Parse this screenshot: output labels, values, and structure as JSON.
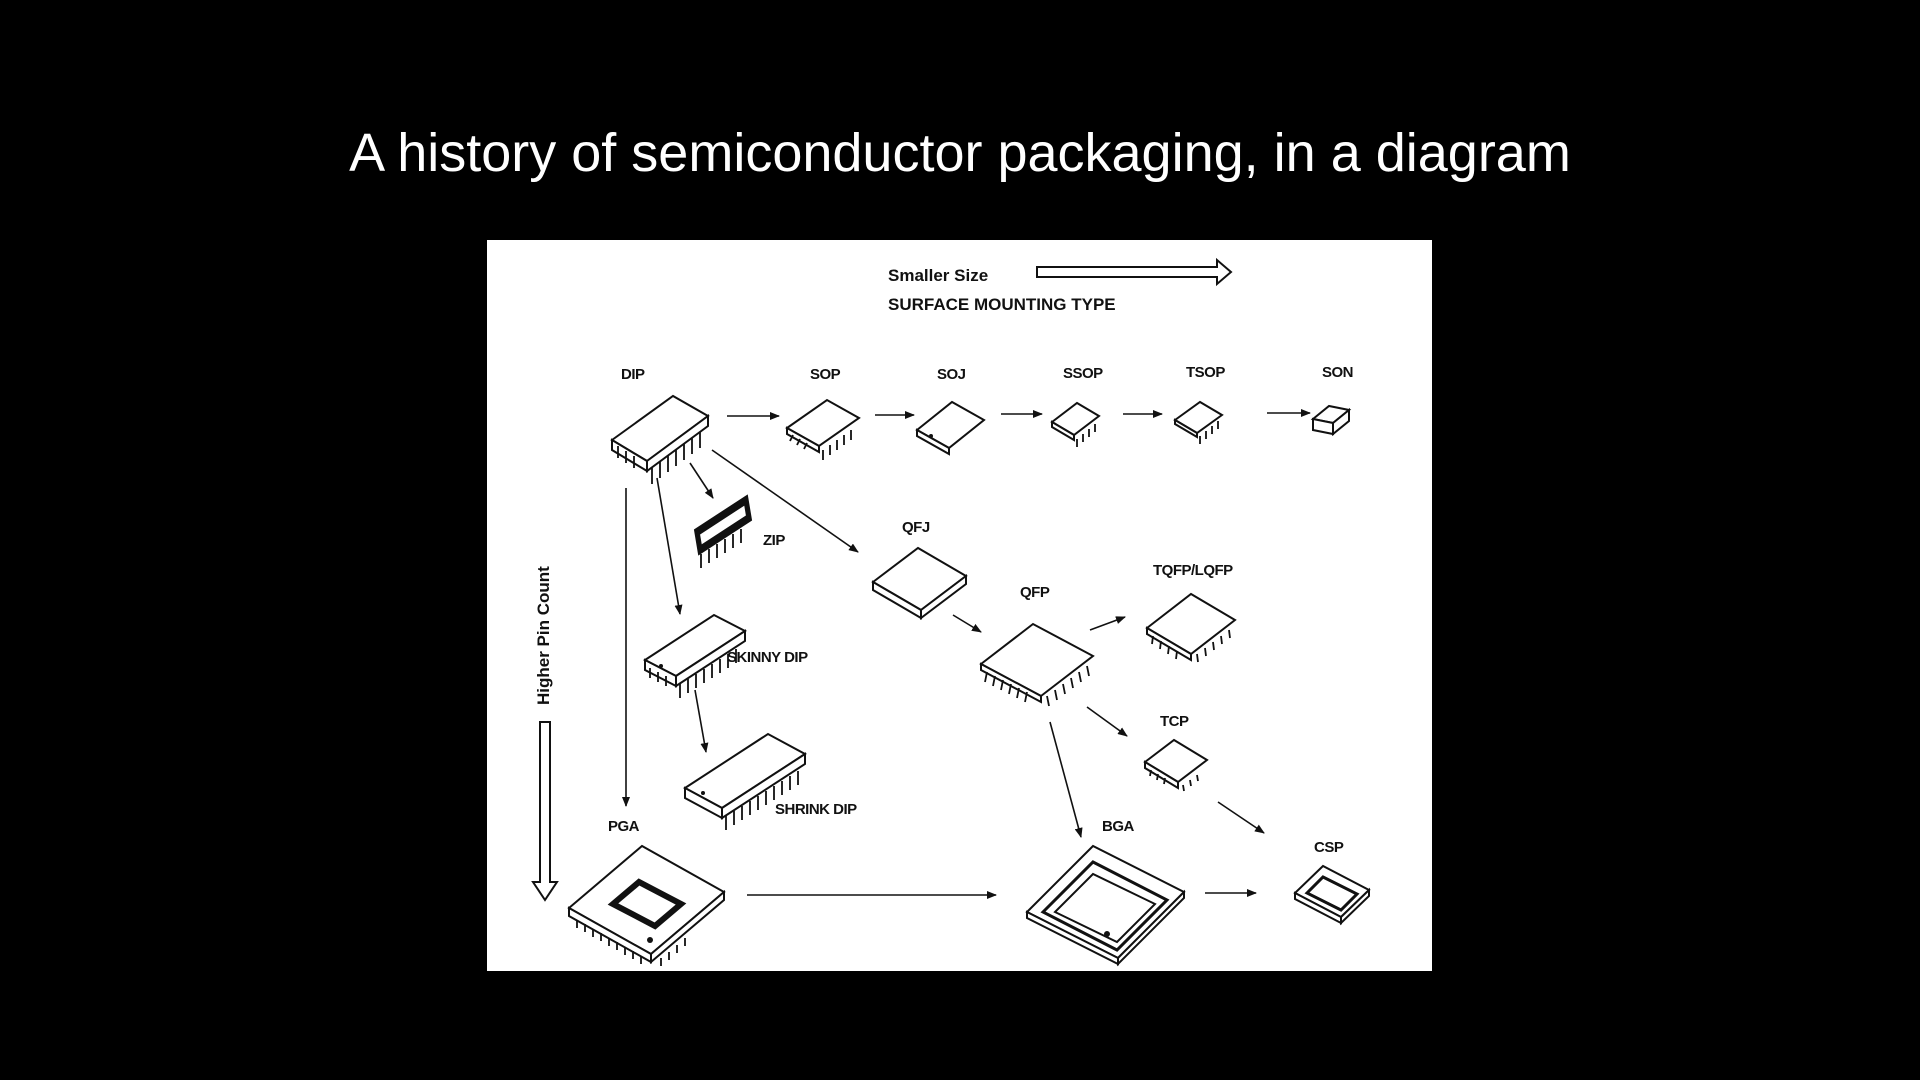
{
  "slide": {
    "title": "A history of semiconductor packaging, in a diagram"
  },
  "diagram": {
    "top_axis": {
      "label_1": "Smaller Size",
      "label_2": "SURFACE MOUNTING TYPE"
    },
    "side_axis": {
      "label": "Higher Pin Count"
    },
    "packages": {
      "dip": "DIP",
      "sop": "SOP",
      "soj": "SOJ",
      "ssop": "SSOP",
      "tsop": "TSOP",
      "son": "SON",
      "zip": "ZIP",
      "qfj": "QFJ",
      "qfp": "QFP",
      "tqfp": "TQFP/LQFP",
      "skinny_dip": "SKINNY DIP",
      "tcp": "TCP",
      "shrink_dip": "SHRINK DIP",
      "pga": "PGA",
      "bga": "BGA",
      "csp": "CSP"
    },
    "colors": {
      "background": "#000000",
      "figure": "#ffffff",
      "ink": "#111111"
    }
  }
}
